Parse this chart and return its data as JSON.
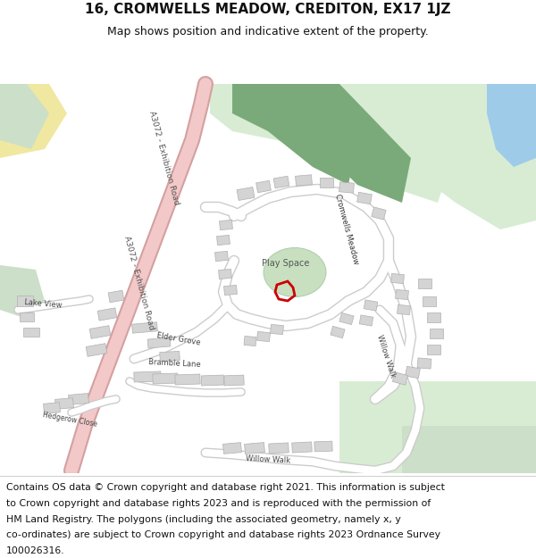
{
  "title_line1": "16, CROMWELLS MEADOW, CREDITON, EX17 1JZ",
  "title_line2": "Map shows position and indicative extent of the property.",
  "footer_lines": [
    "Contains OS data © Crown copyright and database right 2021. This information is subject",
    "to Crown copyright and database rights 2023 and is reproduced with the permission of",
    "HM Land Registry. The polygons (including the associated geometry, namely x, y",
    "co-ordinates) are subject to Crown copyright and database rights 2023 Ordnance Survey",
    "100026316."
  ],
  "bg_color": "#ffffff",
  "map_bg": "#f7f7f7",
  "road_color": "#f2c8c8",
  "road_border": "#d4a0a0",
  "building_fill": "#d4d4d4",
  "building_edge": "#b0b0b0",
  "green_dark": "#7aaa7a",
  "green_mid": "#8bb88b",
  "green_light": "#ccdfc8",
  "green_pale": "#d8ecd4",
  "water_color": "#9ecce8",
  "yellow_road": "#f5e4a0",
  "property_red": "#cc0000",
  "playspace_green": "#c8e0c0",
  "title_fs": 11,
  "subtitle_fs": 9,
  "footer_fs": 7.8
}
